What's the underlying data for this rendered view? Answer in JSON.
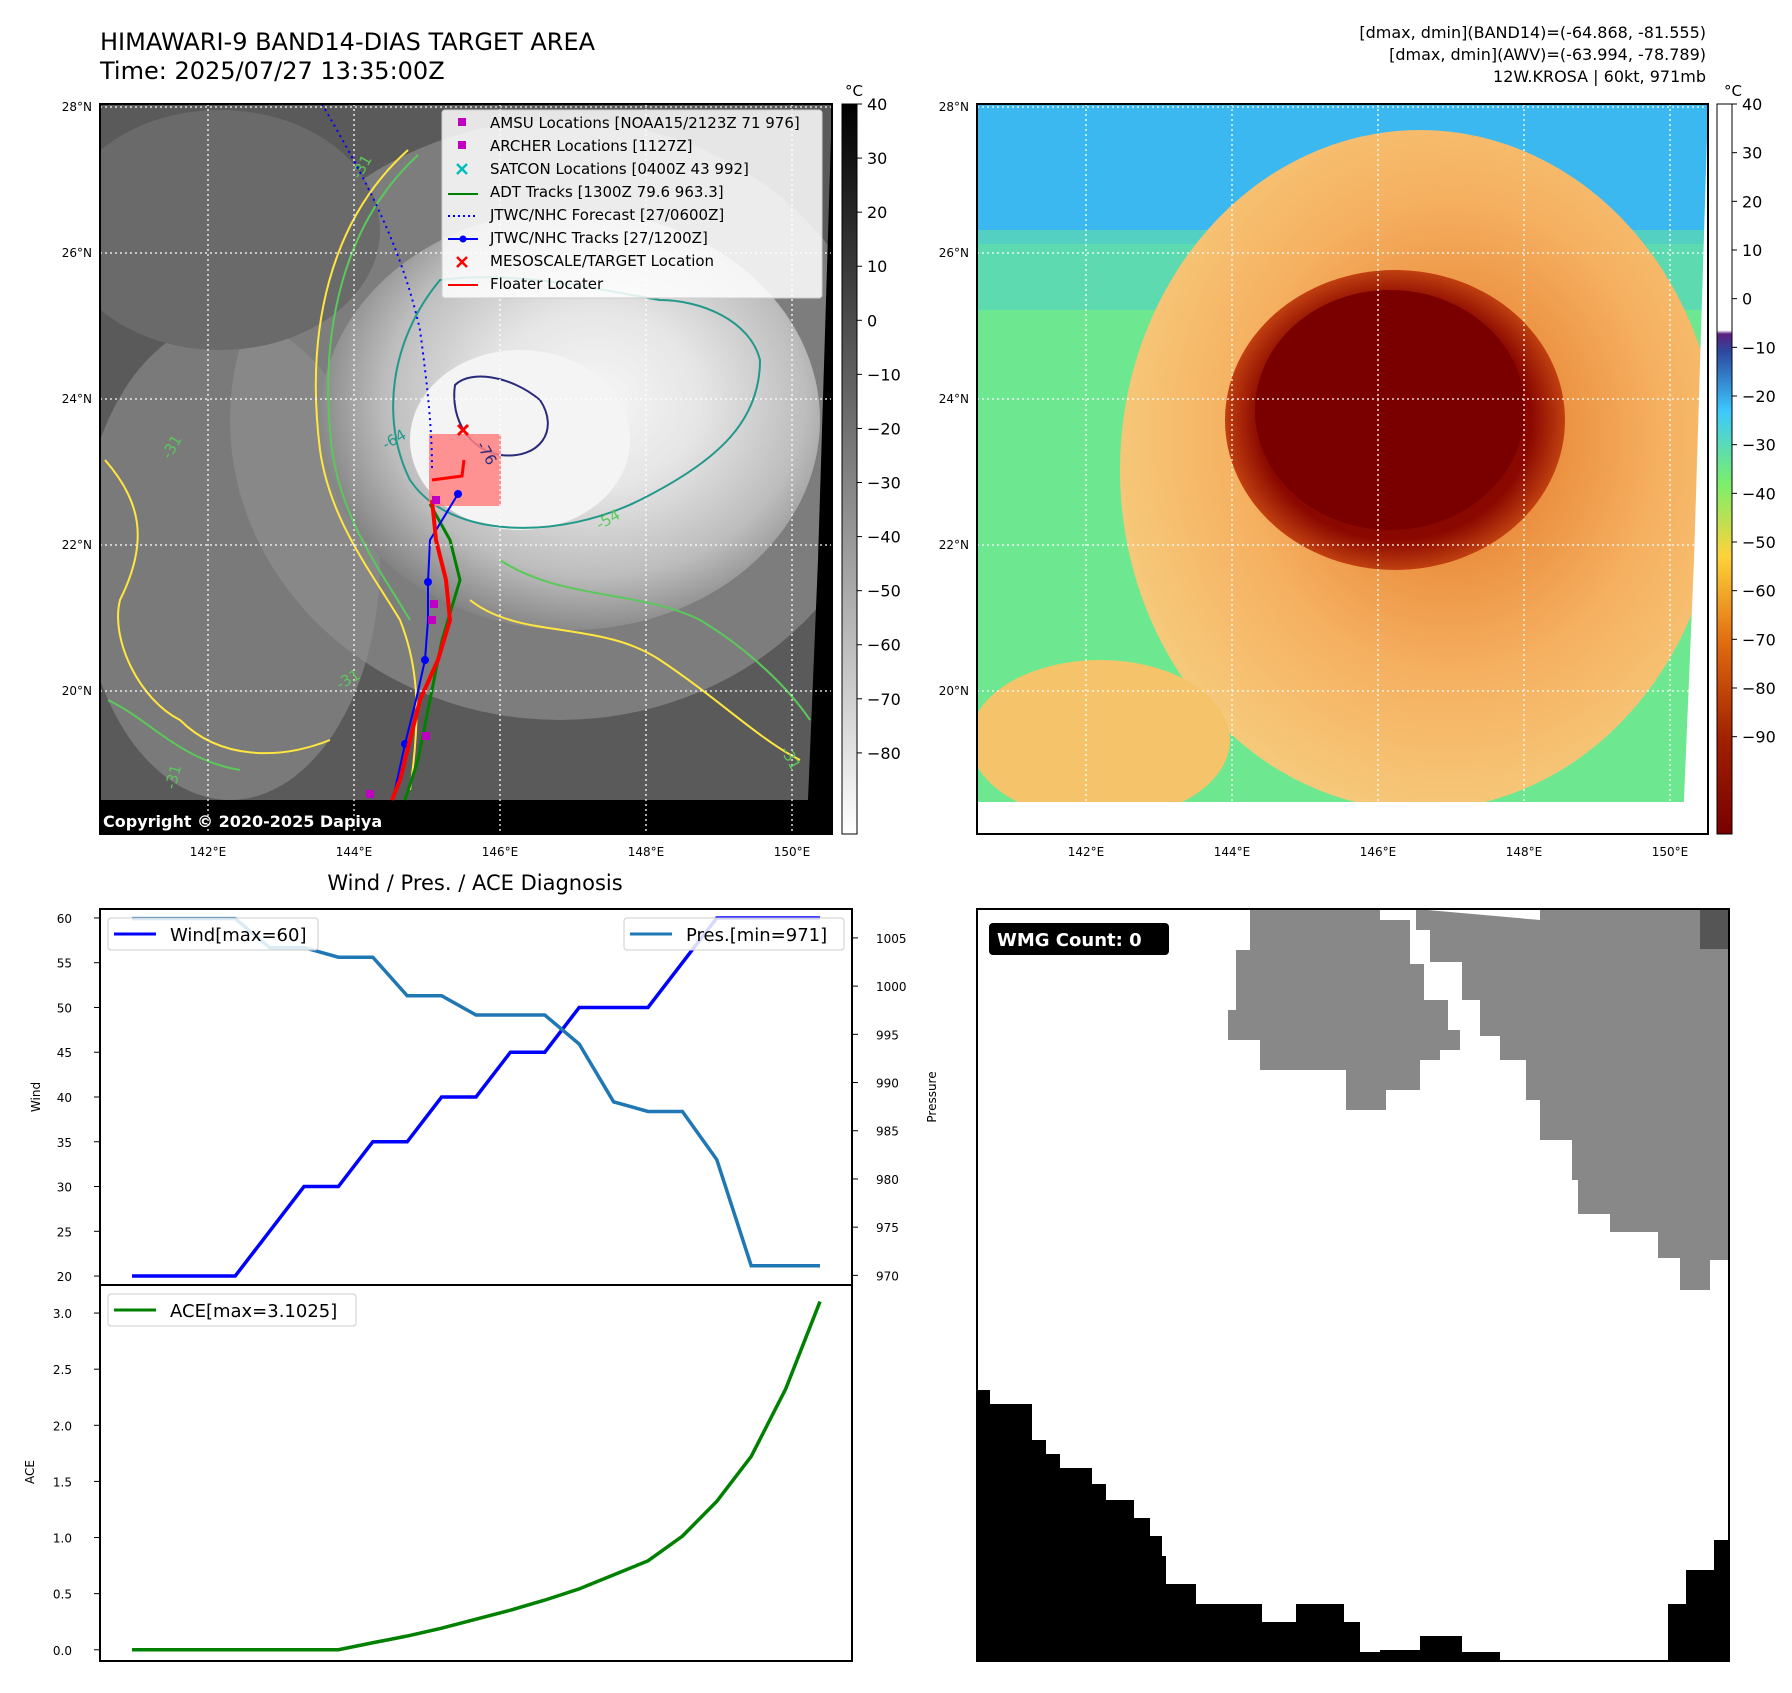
{
  "header": {
    "title": "HIMAWARI-9 BAND14-DIAS TARGET AREA",
    "time": "Time: 2025/07/27 13:35:00Z",
    "info_lines": [
      "[dmax, dmin](BAND14)=(-64.868, -81.555)",
      "[dmax, dmin](AWV)=(-63.994, -78.789)",
      "12W.KROSA | 60kt, 971mb"
    ]
  },
  "copyright": "Copyright © 2020-2025 Dapiya",
  "map_ticks": {
    "lat": [
      "28°N",
      "26°N",
      "24°N",
      "22°N",
      "20°N"
    ],
    "lon": [
      "142°E",
      "144°E",
      "146°E",
      "148°E",
      "150°E"
    ]
  },
  "legend": [
    {
      "label": "AMSU Locations [NOAA15/2123Z 71 976]",
      "marker": "square",
      "color": "#c000c0"
    },
    {
      "label": "ARCHER Locations [1127Z]",
      "marker": "square",
      "color": "#c000c0"
    },
    {
      "label": "SATCON Locations [0400Z 43 992]",
      "marker": "x",
      "color": "#00bfbf"
    },
    {
      "label": "ADT Tracks [1300Z 79.6 963.3]",
      "marker": "line",
      "color": "#008000"
    },
    {
      "label": "JTWC/NHC Forecast [27/0600Z]",
      "marker": "dotted",
      "color": "#0000ff"
    },
    {
      "label": "JTWC/NHC Tracks [27/1200Z]",
      "marker": "line-dot",
      "color": "#0000ff"
    },
    {
      "label": "MESOSCALE/TARGET Location",
      "marker": "x",
      "color": "#ff0000"
    },
    {
      "label": "Floater Locater",
      "marker": "line",
      "color": "#ff0000"
    }
  ],
  "colorbar_left": {
    "unit": "°C",
    "ticks": [
      "40",
      "30",
      "20",
      "10",
      "0",
      "−10",
      "−20",
      "−30",
      "−40",
      "−50",
      "−60",
      "−70",
      "−80"
    ]
  },
  "colorbar_right": {
    "unit": "°C",
    "ticks": [
      "40",
      "30",
      "20",
      "10",
      "0",
      "−10",
      "−20",
      "−30",
      "−40",
      "−50",
      "−60",
      "−70",
      "−80",
      "−90"
    ]
  },
  "contour_labels": [
    "-31",
    "-64",
    "-31",
    "-31",
    "-31",
    "-31",
    "-54",
    "-76"
  ],
  "wmg_label": "WMG Count: 0",
  "colors": {
    "wind": "#0000ff",
    "pressure": "#1f77b4",
    "ace": "#008000",
    "land": "#888888"
  },
  "chart_data": [
    {
      "type": "line",
      "title": "Wind / Pres. / ACE Diagnosis",
      "xlabel": "",
      "ylabel": "Wind",
      "y2label": "Pressure",
      "ylim": [
        19,
        61
      ],
      "y2lim": [
        969,
        1008
      ],
      "yticks": [
        "20",
        "25",
        "30",
        "35",
        "40",
        "45",
        "50",
        "55",
        "60"
      ],
      "y2ticks": [
        "970",
        "975",
        "980",
        "985",
        "990",
        "995",
        "1000",
        "1005"
      ],
      "x": [
        0,
        1,
        2,
        3,
        4,
        5,
        6,
        7,
        8,
        9,
        10,
        11,
        12,
        13,
        14,
        15,
        16,
        17,
        18,
        19,
        20
      ],
      "series": [
        {
          "name": "Wind[max=60]",
          "axis": "left",
          "values": [
            20,
            20,
            20,
            20,
            25,
            30,
            30,
            35,
            35,
            40,
            40,
            45,
            45,
            50,
            50,
            50,
            55,
            60,
            60,
            60,
            60
          ]
        },
        {
          "name": "Pres.[min=971]",
          "axis": "right",
          "values": [
            1007,
            1007,
            1007,
            1007,
            1004,
            1004,
            1003,
            1003,
            999,
            999,
            997,
            997,
            997,
            994,
            988,
            987,
            987,
            982,
            971,
            971,
            971
          ]
        }
      ]
    },
    {
      "type": "line",
      "title": "",
      "xlabel": "",
      "ylabel": "ACE",
      "ylim": [
        -0.1,
        3.25
      ],
      "yticks": [
        "0.0",
        "0.5",
        "1.0",
        "1.5",
        "2.0",
        "2.5",
        "3.0"
      ],
      "x": [
        0,
        1,
        2,
        3,
        4,
        5,
        6,
        7,
        8,
        9,
        10,
        11,
        12,
        13,
        14,
        15,
        16,
        17,
        18,
        19,
        20
      ],
      "series": [
        {
          "name": "ACE[max=3.1025]",
          "values": [
            0,
            0,
            0,
            0,
            0,
            0,
            0,
            0.0625,
            0.1225,
            0.1925,
            0.2725,
            0.3525,
            0.4425,
            0.5425,
            0.6675,
            0.7925,
            1.0125,
            1.3225,
            1.7225,
            2.3225,
            3.1025
          ]
        }
      ]
    }
  ]
}
